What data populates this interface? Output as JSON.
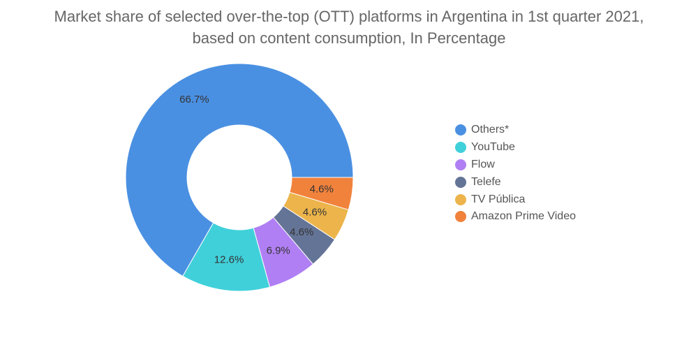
{
  "chart_data": {
    "type": "pie",
    "variant": "donut",
    "title": "Market share of selected over-the-top (OTT) platforms in Argentina in 1st quarter 2021, based on content consumption, In Percentage",
    "categories": [
      "Others*",
      "YouTube",
      "Flow",
      "Telefe",
      "TV Pública",
      "Amazon Prime Video"
    ],
    "values": [
      66.7,
      12.6,
      6.9,
      4.6,
      4.6,
      4.6
    ],
    "labels": [
      "66.7%",
      "12.6%",
      "6.9%",
      "4.6%",
      "4.6%",
      "4.6%"
    ],
    "colors": [
      "#4a90e2",
      "#40d0da",
      "#b07ff4",
      "#647496",
      "#ecb44a",
      "#f1823c"
    ],
    "legend_position": "right"
  }
}
